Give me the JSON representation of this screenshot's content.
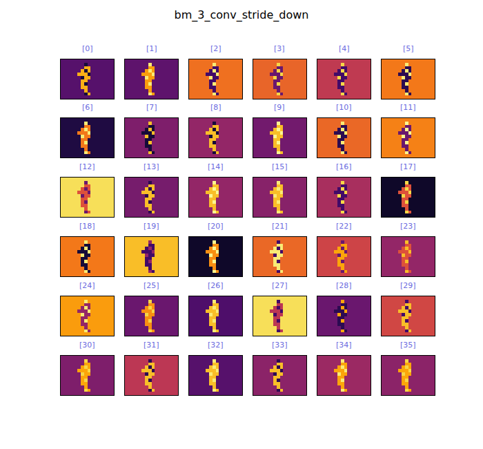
{
  "chart_data": {
    "type": "heatmap_grid",
    "title": "bm_3_conv_stride_down",
    "color": "inferno",
    "zlim": [
      0,
      1
    ],
    "tick_labels": false,
    "grid": false,
    "mask": [
      [
        0,
        0,
        0,
        0,
        0,
        0,
        0,
        0,
        0,
        0,
        0,
        0,
        0,
        0,
        0,
        0
      ],
      [
        0,
        0,
        0,
        0,
        0,
        0,
        0,
        2,
        0,
        0,
        0,
        0,
        0,
        0,
        0,
        0
      ],
      [
        0,
        0,
        0,
        0,
        0,
        0,
        0,
        1,
        1,
        0,
        0,
        0,
        0,
        0,
        0,
        0
      ],
      [
        0,
        0,
        0,
        0,
        0,
        0,
        1,
        2,
        1,
        0,
        0,
        0,
        0,
        0,
        0,
        0
      ],
      [
        0,
        0,
        0,
        0,
        0,
        1,
        1,
        1,
        2,
        0,
        0,
        0,
        0,
        0,
        0,
        0
      ],
      [
        0,
        0,
        0,
        0,
        0,
        0,
        2,
        1,
        1,
        0,
        0,
        0,
        0,
        0,
        0,
        0
      ],
      [
        0,
        0,
        0,
        0,
        0,
        0,
        1,
        1,
        0,
        0,
        0,
        0,
        0,
        0,
        0,
        0
      ],
      [
        0,
        0,
        0,
        0,
        0,
        0,
        1,
        2,
        0,
        0,
        0,
        0,
        0,
        0,
        0,
        0
      ],
      [
        0,
        0,
        0,
        0,
        0,
        0,
        1,
        1,
        0,
        0,
        0,
        0,
        0,
        0,
        0,
        0
      ],
      [
        0,
        0,
        0,
        0,
        0,
        0,
        0,
        1,
        0,
        0,
        0,
        0,
        0,
        0,
        0,
        0
      ],
      [
        0,
        0,
        0,
        0,
        0,
        0,
        0,
        2,
        1,
        0,
        0,
        0,
        0,
        0,
        0,
        0
      ],
      [
        0,
        0,
        0,
        0,
        0,
        0,
        0,
        0,
        0,
        0,
        0,
        0,
        0,
        0,
        0,
        0
      ]
    ],
    "panels": [
      {
        "label": "[0]",
        "values": [
          0.25,
          0.82,
          0.1
        ]
      },
      {
        "label": "[1]",
        "values": [
          0.27,
          0.78,
          0.95
        ]
      },
      {
        "label": "[2]",
        "values": [
          0.68,
          0.2,
          0.95
        ]
      },
      {
        "label": "[3]",
        "values": [
          0.65,
          0.3,
          0.9
        ]
      },
      {
        "label": "[4]",
        "values": [
          0.51,
          0.2,
          0.9
        ]
      },
      {
        "label": "[5]",
        "values": [
          0.7,
          0.15,
          0.95
        ]
      },
      {
        "label": "[6]",
        "values": [
          0.12,
          0.7,
          0.95
        ]
      },
      {
        "label": "[7]",
        "values": [
          0.35,
          0.1,
          0.85
        ]
      },
      {
        "label": "[8]",
        "values": [
          0.4,
          0.85,
          0.1
        ]
      },
      {
        "label": "[9]",
        "values": [
          0.32,
          0.85,
          0.98
        ]
      },
      {
        "label": "[10]",
        "values": [
          0.66,
          0.15,
          0.95
        ]
      },
      {
        "label": "[11]",
        "values": [
          0.72,
          0.3,
          0.98
        ]
      },
      {
        "label": "[12]",
        "values": [
          0.92,
          0.6,
          0.3
        ]
      },
      {
        "label": "[13]",
        "values": [
          0.33,
          0.85,
          0.15
        ]
      },
      {
        "label": "[14]",
        "values": [
          0.4,
          0.85,
          0.98
        ]
      },
      {
        "label": "[15]",
        "values": [
          0.37,
          0.85,
          0.95
        ]
      },
      {
        "label": "[16]",
        "values": [
          0.45,
          0.2,
          0.9
        ]
      },
      {
        "label": "[17]",
        "values": [
          0.07,
          0.6,
          0.9
        ]
      },
      {
        "label": "[18]",
        "values": [
          0.7,
          0.1,
          0.95
        ]
      },
      {
        "label": "[19]",
        "values": [
          0.85,
          0.2,
          0.4
        ]
      },
      {
        "label": "[20]",
        "values": [
          0.07,
          0.75,
          0.98
        ]
      },
      {
        "label": "[21]",
        "values": [
          0.66,
          0.95,
          0.2
        ]
      },
      {
        "label": "[22]",
        "values": [
          0.55,
          0.8,
          0.3
        ]
      },
      {
        "label": "[23]",
        "values": [
          0.4,
          0.6,
          0.85
        ]
      },
      {
        "label": "[24]",
        "values": [
          0.78,
          0.4,
          0.95
        ]
      },
      {
        "label": "[25]",
        "values": [
          0.3,
          0.75,
          0.9
        ]
      },
      {
        "label": "[26]",
        "values": [
          0.23,
          0.85,
          0.95
        ]
      },
      {
        "label": "[27]",
        "values": [
          0.92,
          0.5,
          0.2
        ]
      },
      {
        "label": "[28]",
        "values": [
          0.3,
          0.15,
          0.8
        ]
      },
      {
        "label": "[29]",
        "values": [
          0.56,
          0.85,
          0.2
        ]
      },
      {
        "label": "[30]",
        "values": [
          0.35,
          0.8,
          0.9
        ]
      },
      {
        "label": "[31]",
        "values": [
          0.5,
          0.85,
          0.15
        ]
      },
      {
        "label": "[32]",
        "values": [
          0.25,
          0.85,
          0.95
        ]
      },
      {
        "label": "[33]",
        "values": [
          0.38,
          0.85,
          0.15
        ]
      },
      {
        "label": "[34]",
        "values": [
          0.42,
          0.8,
          0.95
        ]
      },
      {
        "label": "[35]",
        "values": [
          0.38,
          0.8,
          0.9
        ]
      }
    ]
  }
}
